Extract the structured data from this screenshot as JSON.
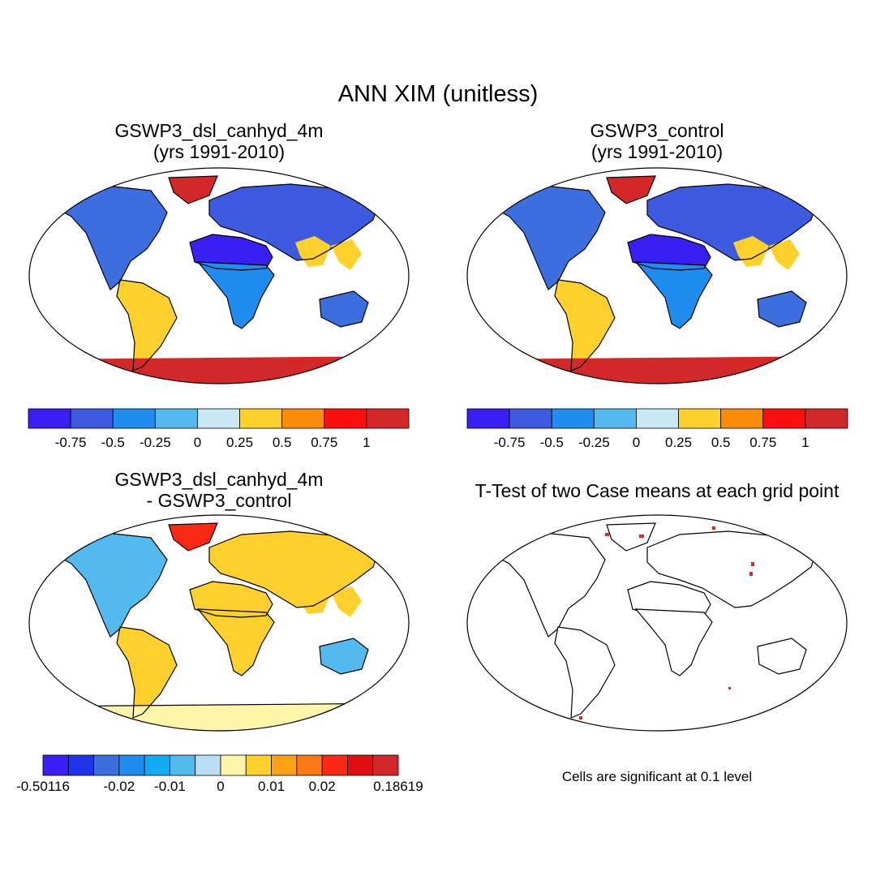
{
  "title": "ANN XIM (unitless)",
  "panels": [
    {
      "title_line1": "GSWP3_dsl_canhyd_4m",
      "title_line2": "(yrs 1991-2010)"
    },
    {
      "title_line1": "GSWP3_control",
      "title_line2": "(yrs 1991-2010)"
    },
    {
      "title_line1": "GSWP3_dsl_canhyd_4m",
      "title_line2": "- GSWP3_control"
    },
    {
      "title_line1": "T-Test of two Case means at each grid point",
      "title_line2": ""
    }
  ],
  "significance_note": "Cells are significant at 0.1 level",
  "colorbar_abs": {
    "colors": [
      "#3a1ff5",
      "#3d5ae0",
      "#1f8cf0",
      "#53baf0",
      "#c8e8f5",
      "#fdd02c",
      "#fb8c0a",
      "#fb0f0f",
      "#d42828"
    ],
    "labels": [
      "-0.75",
      "-0.5",
      "-0.25",
      "0",
      "0.25",
      "0.5",
      "0.75",
      "1"
    ]
  },
  "colorbar_diff": {
    "colors": [
      "#3a1ff5",
      "#1f33e8",
      "#3d6ee0",
      "#1f8cf0",
      "#10aaf5",
      "#53baf0",
      "#b8def5",
      "#fff5a8",
      "#fdd02c",
      "#fba314",
      "#fb7814",
      "#fb2814",
      "#e00f0f",
      "#d42828"
    ],
    "labels": [
      "-0.50116",
      "-0.02",
      "-0.01",
      "0",
      "0.01",
      "0.02",
      "0.18619"
    ]
  },
  "map_colors": {
    "ocean": "#ffffff",
    "coast": "#000000",
    "panel1": {
      "americas": "#3d6ee0",
      "south_america": "#fdd02c",
      "africa_north": "#3a1ff5",
      "africa_south": "#1f8cf0",
      "eurasia": "#3d5ae0",
      "asia_south": "#fdd02c",
      "australia": "#3d6ee0",
      "greenland": "#d42828",
      "antarctica": "#d42828"
    },
    "panel3": {
      "americas": "#53baf0",
      "south_america": "#fdd02c",
      "africa_north": "#fdd02c",
      "africa_south": "#fdd02c",
      "eurasia": "#fdd02c",
      "asia_south": "#fdd02c",
      "australia": "#53baf0",
      "greenland": "#fb2814",
      "antarctica": "#fff5a8"
    },
    "significant": "#e02828"
  }
}
